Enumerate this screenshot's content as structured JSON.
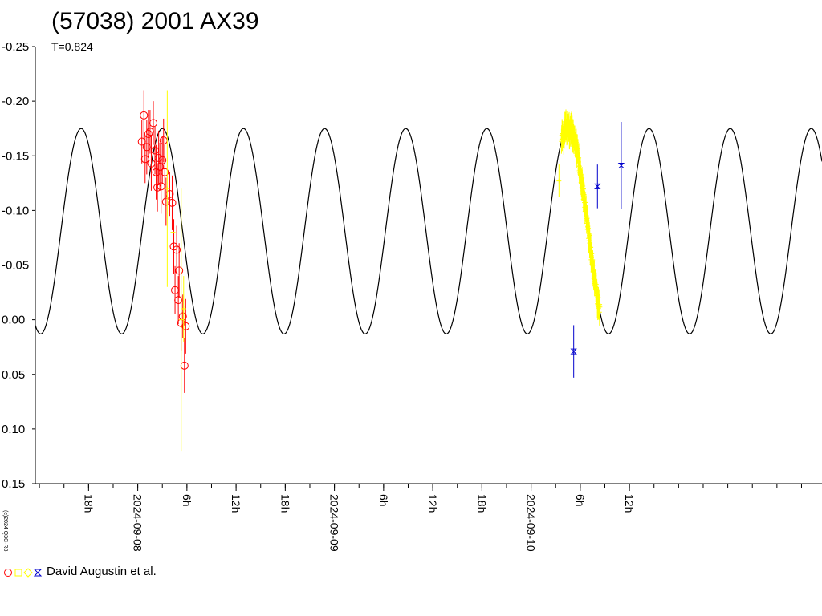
{
  "title": "(57038) 2001 AX39",
  "subtitle": "T=0.824",
  "version_tag": "(c)2024 Q3C-R8",
  "legend": {
    "label": "David Augustin et al.",
    "symbols": [
      {
        "shape": "circle",
        "color": "#ff0000"
      },
      {
        "shape": "square",
        "color": "#ffff00"
      },
      {
        "shape": "diamond",
        "color": "#ffff00"
      },
      {
        "shape": "hourglass",
        "color": "#0000cc"
      }
    ]
  },
  "colors": {
    "curve": "#000000",
    "red": "#ff0000",
    "yellow": "#ffff00",
    "blue": "#0000cc",
    "axis": "#000000"
  },
  "chart_data": {
    "type": "scatter",
    "title": "(57038) 2001 AX39",
    "subtitle": "T=0.824",
    "y_inverted": true,
    "ylim": [
      -0.25,
      0.15
    ],
    "xlim_hours": [
      -12.5,
      83.5
    ],
    "y_ticks": [
      "-0.25",
      "-0.20",
      "-0.15",
      "-0.10",
      "-0.05",
      "0.00",
      "0.05",
      "0.10",
      "0.15"
    ],
    "x_ticks": [
      {
        "hour": -6,
        "label": "18h"
      },
      {
        "hour": 0,
        "label": "2024-09-08"
      },
      {
        "hour": 6,
        "label": "6h"
      },
      {
        "hour": 12,
        "label": "12h"
      },
      {
        "hour": 18,
        "label": "18h"
      },
      {
        "hour": 24,
        "label": "2024-09-09"
      },
      {
        "hour": 30,
        "label": "6h"
      },
      {
        "hour": 36,
        "label": "12h"
      },
      {
        "hour": 42,
        "label": "18h"
      },
      {
        "hour": 48,
        "label": "2024-09-10"
      },
      {
        "hour": 54,
        "label": "6h"
      },
      {
        "hour": 60,
        "label": "12h"
      }
    ],
    "model_curve": {
      "period_hours": 9.9,
      "peak_hour": 3.0,
      "min_mag": -0.175,
      "max_mag": 0.013
    },
    "series": [
      {
        "marker": "circle",
        "color": "#ff0000",
        "points": [
          [
            0.5,
            -0.163,
            0.02
          ],
          [
            0.75,
            -0.187,
            0.023
          ],
          [
            0.9,
            -0.147,
            0.022
          ],
          [
            1.1,
            -0.158,
            0.025
          ],
          [
            1.3,
            -0.17,
            0.022
          ],
          [
            1.5,
            -0.172,
            0.02
          ],
          [
            1.65,
            -0.143,
            0.025
          ],
          [
            1.9,
            -0.18,
            0.02
          ],
          [
            2.1,
            -0.155,
            0.022
          ],
          [
            2.25,
            -0.135,
            0.025
          ],
          [
            2.4,
            -0.121,
            0.022
          ],
          [
            2.55,
            -0.148,
            0.025
          ],
          [
            2.7,
            -0.14,
            0.022
          ],
          [
            2.85,
            -0.122,
            0.025
          ],
          [
            3.0,
            -0.146,
            0.022
          ],
          [
            3.15,
            -0.164,
            0.02
          ],
          [
            3.3,
            -0.135,
            0.025
          ],
          [
            3.45,
            -0.108,
            0.022
          ],
          [
            3.9,
            -0.115,
            0.02
          ],
          [
            4.2,
            -0.107,
            0.025
          ],
          [
            4.4,
            -0.067,
            0.025
          ],
          [
            4.55,
            -0.027,
            0.022
          ],
          [
            4.75,
            -0.064,
            0.022
          ],
          [
            4.95,
            -0.018,
            0.022
          ],
          [
            5.05,
            -0.045,
            0.025
          ],
          [
            5.3,
            0.003,
            0.025
          ],
          [
            5.5,
            -0.003,
            0.02
          ],
          [
            5.7,
            0.042,
            0.025
          ],
          [
            5.85,
            0.006,
            0.025
          ]
        ]
      },
      {
        "marker": "cross",
        "color": "#ffff00",
        "points": [
          [
            3.6,
            -0.12,
            0.09
          ],
          [
            4.3,
            -0.08,
            0.03
          ],
          [
            5.3,
            0.0,
            0.12
          ],
          [
            5.6,
            -0.01,
            0.03
          ],
          [
            51.4,
            -0.127,
            0.015
          ]
        ],
        "dense_segments": [
          {
            "from_hour": 51.7,
            "to_hour": 56.4,
            "count": 180
          }
        ]
      },
      {
        "marker": "hourglass",
        "color": "#0000cc",
        "points": [
          [
            53.2,
            0.029,
            0.024
          ],
          [
            56.1,
            -0.122,
            0.02
          ],
          [
            59.0,
            -0.141,
            0.04
          ]
        ]
      }
    ]
  }
}
